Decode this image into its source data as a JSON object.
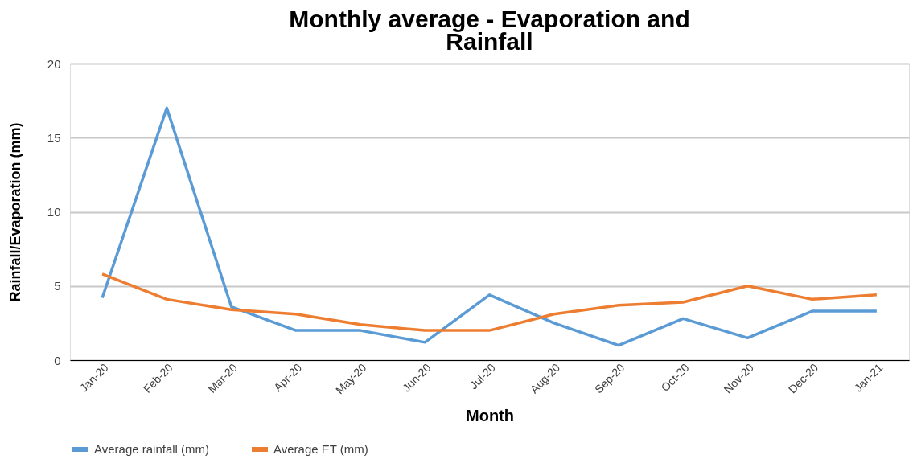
{
  "chart_data": {
    "type": "line",
    "title": [
      "Monthly average - Evaporation and",
      "Rainfall"
    ],
    "xlabel": "Month",
    "ylabel": "Rainfall/Evaporation (mm)",
    "categories": [
      "Jan-20",
      "Feb-20",
      "Mar-20",
      "Apr-20",
      "May-20",
      "Jun-20",
      "Jul-20",
      "Aug-20",
      "Sep-20",
      "Oct-20",
      "Nov-20",
      "Dec-20",
      "Jan-21"
    ],
    "series": [
      {
        "name": "Average rainfall (mm)",
        "color": "#5b9bd5",
        "values": [
          4.2,
          17.0,
          3.6,
          2.0,
          2.0,
          1.2,
          4.4,
          2.5,
          1.0,
          2.8,
          1.5,
          3.3,
          3.3
        ]
      },
      {
        "name": "Average ET (mm)",
        "color": "#ed7d31",
        "values": [
          5.8,
          4.1,
          3.4,
          3.1,
          2.4,
          2.0,
          2.0,
          3.1,
          3.7,
          3.9,
          5.0,
          4.1,
          4.4
        ]
      }
    ],
    "ylim": [
      0,
      20
    ],
    "yticks": [
      0,
      5,
      10,
      15,
      20
    ],
    "grid": "y",
    "legend": "bottom",
    "marker": "none",
    "line_style": "solid"
  }
}
